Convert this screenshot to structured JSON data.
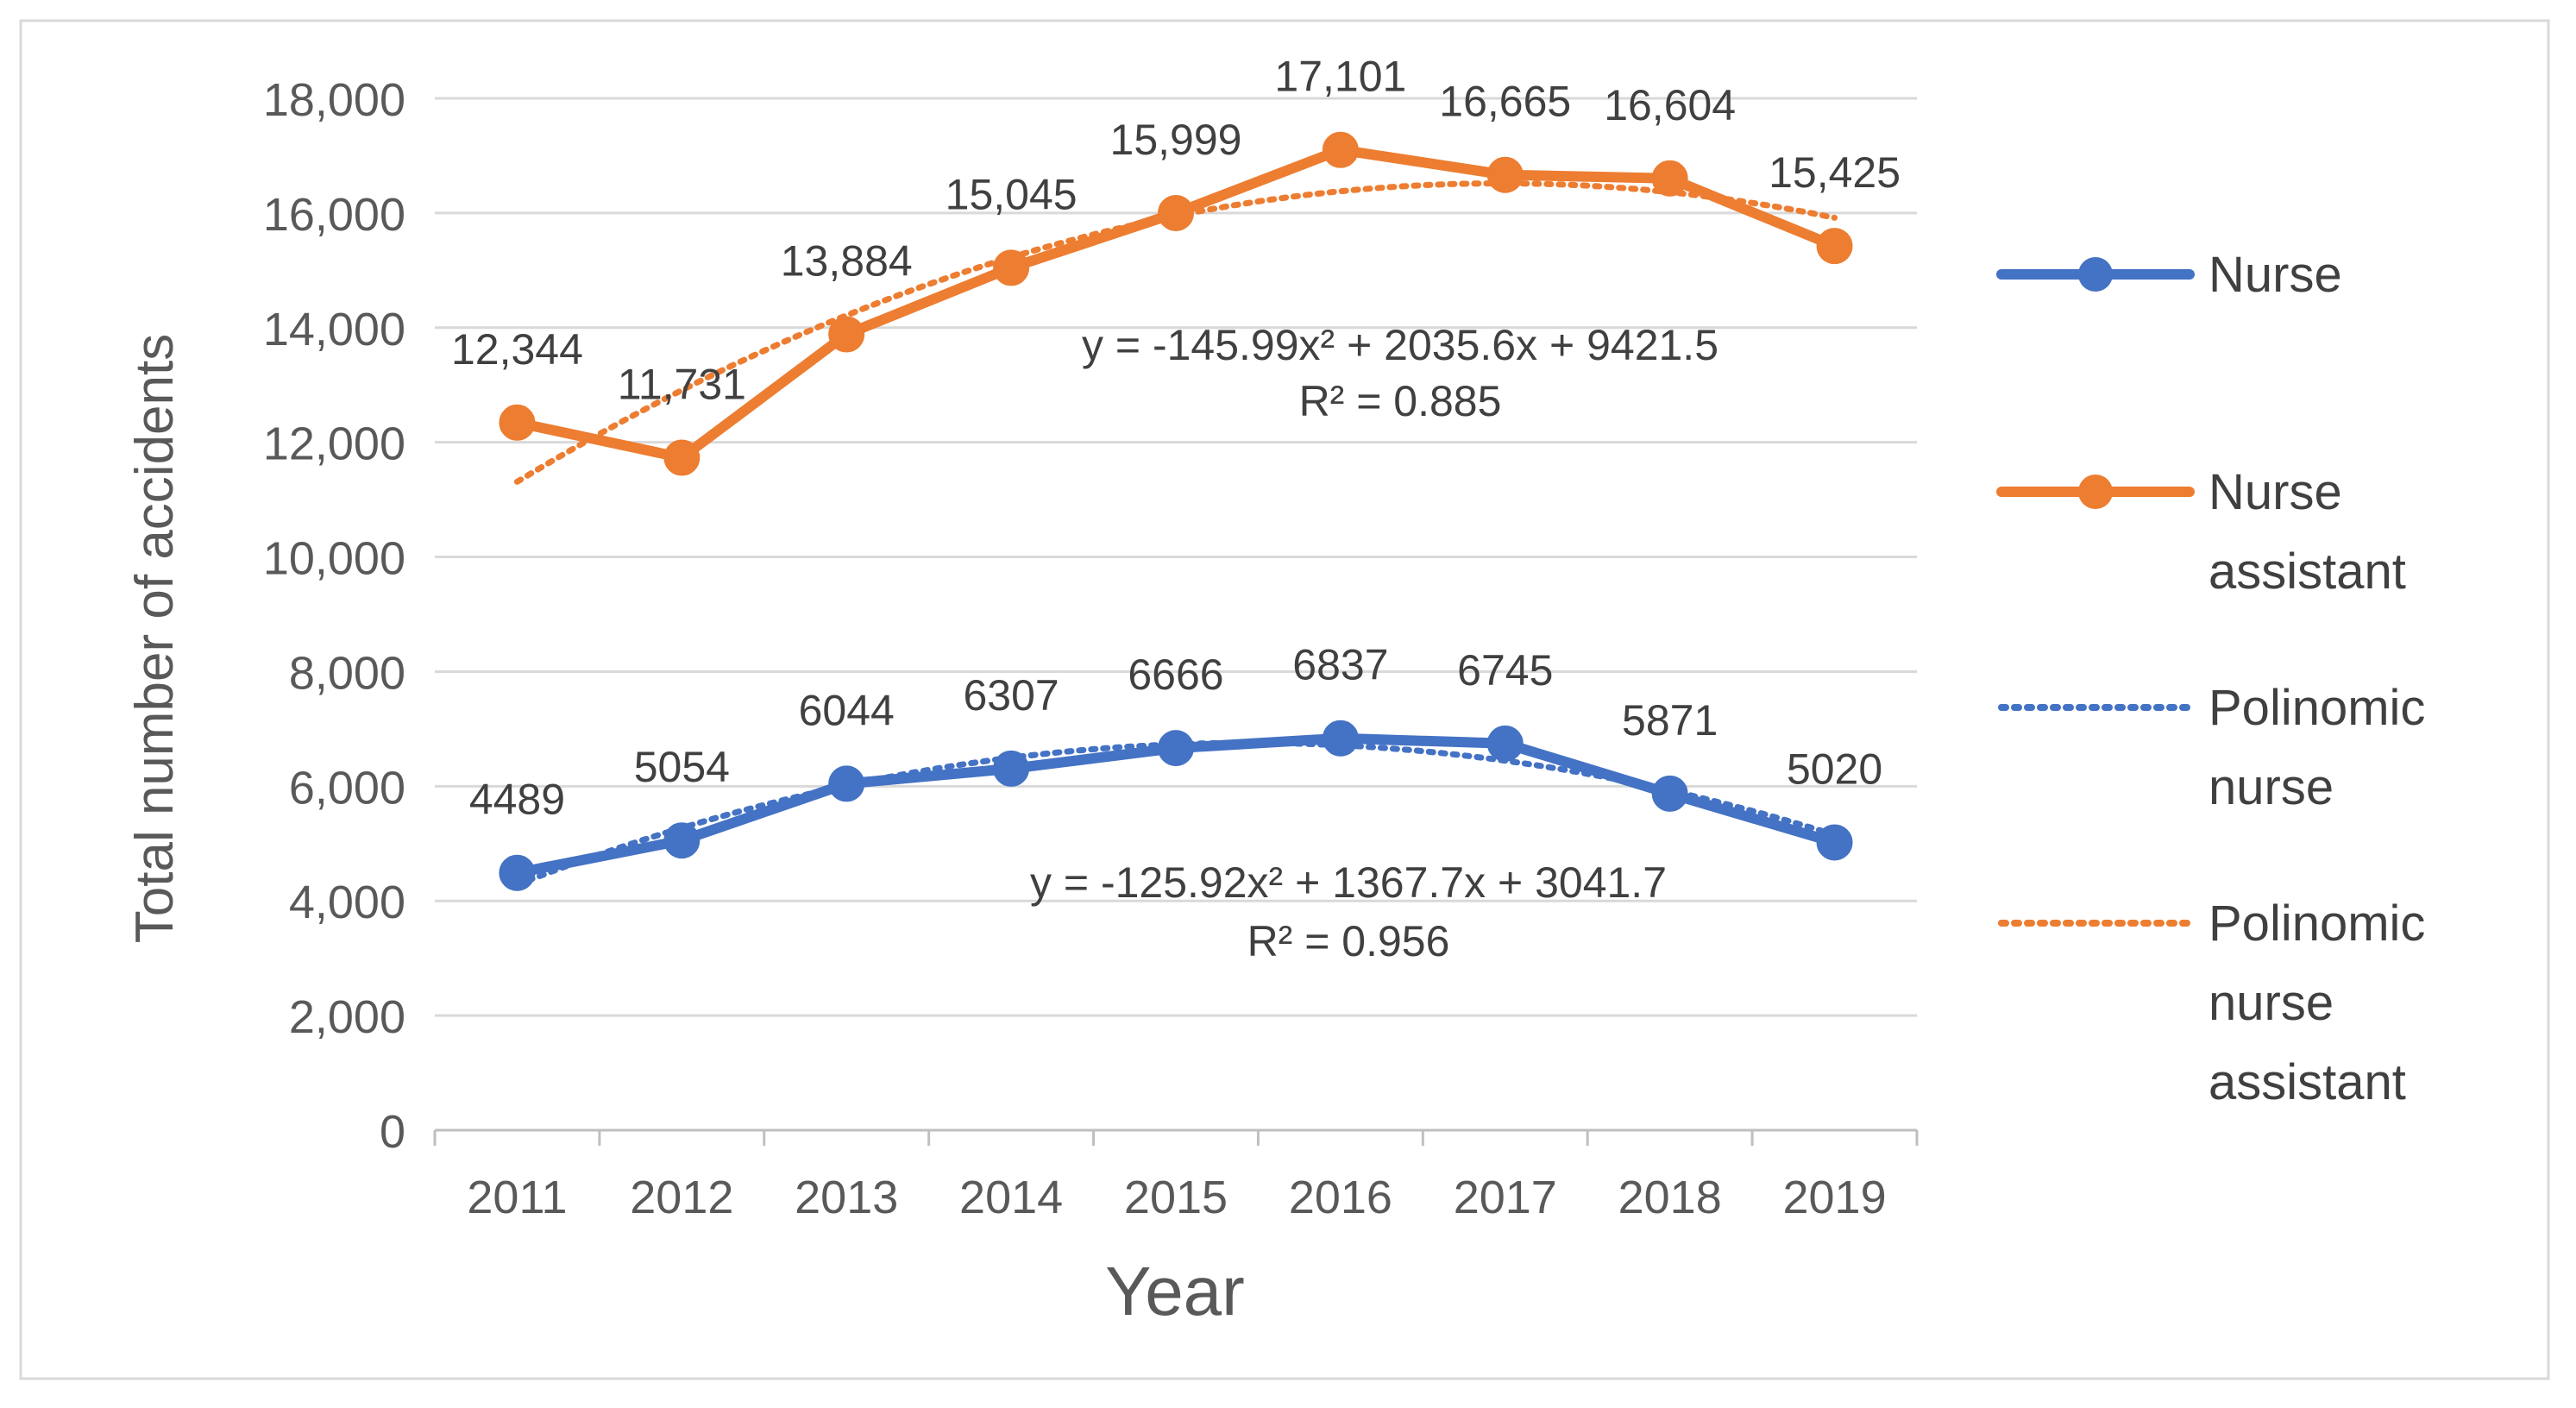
{
  "chart_data": {
    "type": "line",
    "title": "",
    "xlabel": "Year",
    "ylabel": "Total number of accidents",
    "ylim": [
      0,
      18000
    ],
    "ytick_step": 2000,
    "ytick_labels": [
      "0",
      "2,000",
      "4,000",
      "6,000",
      "8,000",
      "10,000",
      "12,000",
      "14,000",
      "16,000",
      "18,000"
    ],
    "categories": [
      "2011",
      "2012",
      "2013",
      "2014",
      "2015",
      "2016",
      "2017",
      "2018",
      "2019"
    ],
    "grid": true,
    "legend_position": "right",
    "series": [
      {
        "name": "Nurse",
        "color": "#4472C4",
        "values": [
          4489,
          5054,
          6044,
          6307,
          6666,
          6837,
          6745,
          5871,
          5020
        ],
        "labels": [
          "4489",
          "5054",
          "6044",
          "6307",
          "6666",
          "6837",
          "6745",
          "5871",
          "5020"
        ]
      },
      {
        "name": "Nurse assistant",
        "color": "#ED7D31",
        "values": [
          12344,
          11731,
          13884,
          15045,
          15999,
          17101,
          16665,
          16604,
          15425
        ],
        "labels": [
          "12,344",
          "11,731",
          "13,884",
          "15,045",
          "15,999",
          "17,101",
          "16,665",
          "16,604",
          "15,425"
        ]
      }
    ],
    "trendlines": [
      {
        "name": "Polinomic nurse",
        "color": "#4472C4",
        "type": "polynomial",
        "coefficients": [
          -125.92,
          1367.7,
          3041.7
        ],
        "equation_label": "y = -125.92x² + 1367.7x + 3041.7",
        "r2_label": "R² = 0.956"
      },
      {
        "name": "Polinomic nurse assistant",
        "color": "#ED7D31",
        "type": "polynomial",
        "coefficients": [
          -145.99,
          2035.6,
          9421.5
        ],
        "equation_label": "y = -145.99x² + 2035.6x + 9421.5",
        "r2_label": "R² = 0.885"
      }
    ],
    "legend": [
      {
        "key": "nurse",
        "label_lines": [
          "Nurse"
        ],
        "color": "#4472C4",
        "style": "line-marker"
      },
      {
        "key": "nurse-assistant",
        "label_lines": [
          "Nurse",
          "assistant"
        ],
        "color": "#ED7D31",
        "style": "line-marker"
      },
      {
        "key": "polinomic-nurse",
        "label_lines": [
          "Polinomic",
          "nurse"
        ],
        "color": "#4472C4",
        "style": "dotted"
      },
      {
        "key": "polinomic-nurse-assistant",
        "label_lines": [
          "Polinomic",
          "nurse",
          "assistant"
        ],
        "color": "#ED7D31",
        "style": "dotted"
      }
    ]
  }
}
